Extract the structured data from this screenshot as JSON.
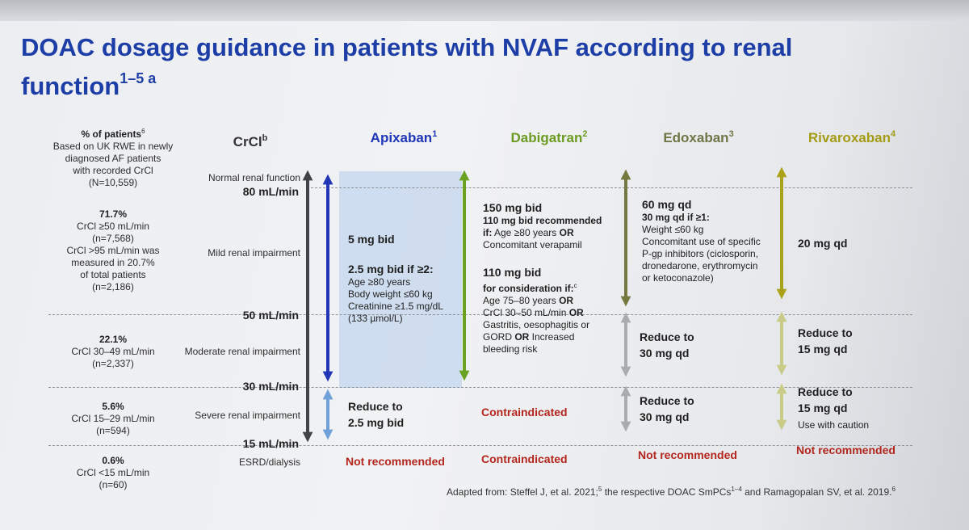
{
  "title": "DOAC dosage guidance in patients with NVAF according to renal function",
  "title_sup": "1–5 a",
  "pct_header": {
    "line1": "% of patients",
    "line1_sup": "6",
    "line2": "Based on UK RWE in newly",
    "line3": "diagnosed AF patients",
    "line4": "with recorded CrCl",
    "line5": "(N=10,559)"
  },
  "pct_rows": [
    {
      "pct": "71.7%",
      "l1": "CrCl ≥50 mL/min",
      "l2": "(n=7,568)",
      "l3": "CrCl >95 mL/min was",
      "l4": "measured in 20.7%",
      "l5": "of total patients",
      "l6": "(n=2,186)"
    },
    {
      "pct": "22.1%",
      "l1": "CrCl 30–49 mL/min",
      "l2": "(n=2,337)"
    },
    {
      "pct": "5.6%",
      "l1": "CrCl 15–29 mL/min",
      "l2": "(n=594)"
    },
    {
      "pct": "0.6%",
      "l1": "CrCl <15 mL/min",
      "l2": "(n=60)"
    }
  ],
  "crcl": {
    "header": "CrCl",
    "header_sup": "b",
    "labels": [
      "Normal renal function",
      "Mild renal impairment",
      "Moderate renal impairment",
      "Severe renal impairment",
      "ESRD/dialysis"
    ],
    "values": [
      "80 mL/min",
      "50 mL/min",
      "30 mL/min",
      "15 mL/min"
    ]
  },
  "drugs": [
    {
      "name": "Apixaban",
      "sup": "1",
      "color": "#1f36b8"
    },
    {
      "name": "Dabigatran",
      "sup": "2",
      "color": "#6d9b22"
    },
    {
      "name": "Edoxaban",
      "sup": "3",
      "color": "#6f7546"
    },
    {
      "name": "Rivaroxaban",
      "sup": "4",
      "color": "#a59c15"
    }
  ],
  "apixaban": {
    "dose1": "5 mg bid",
    "dose2": "2.5 mg bid if ≥2:",
    "c1": "Age ≥80 years",
    "c2": "Body weight ≤60 kg",
    "c3": "Creatinine ≥1.5 mg/dL",
    "c4": "(133 µmol/L)",
    "severe1": "Reduce to",
    "severe2": "2.5 mg bid",
    "esrd": "Not recommended"
  },
  "dabigatran": {
    "dose1": "150 mg bid",
    "rec1": "110 mg bid recommended",
    "rec2_prefix": "if:",
    "rec2": " Age ≥80 years ",
    "or": "OR",
    "rec3": "Concomitant verapamil",
    "dose2": "110 mg bid",
    "cons": "for consideration if:",
    "cons_sup": "c",
    "k1": "Age 75–80 years ",
    "k2": "CrCl 30–50 mL/min ",
    "k3": "Gastritis, oesophagitis or",
    "k4": "GORD ",
    "k4b": " Increased",
    "k5": "bleeding risk",
    "severe": "Contraindicated",
    "esrd": "Contraindicated"
  },
  "edoxaban": {
    "dose1": "60 mg qd",
    "dose2": "30 mg qd if ≥1:",
    "c1": "Weight ≤60 kg",
    "c2": "Concomitant use of specific",
    "c3": "P-gp inhibitors (ciclosporin,",
    "c4": "dronedarone, erythromycin",
    "c5": "or ketoconazole)",
    "mod1": "Reduce to",
    "mod2": "30 mg qd",
    "sev1": "Reduce to",
    "sev2": "30 mg qd",
    "esrd": "Not recommended"
  },
  "rivaroxaban": {
    "dose1": "20 mg qd",
    "mod1": "Reduce to",
    "mod2": "15 mg qd",
    "sev1": "Reduce to",
    "sev2": "15 mg qd",
    "sev3": "Use with caution",
    "esrd": "Not recommended"
  },
  "footer": {
    "text1": "Adapted from: Steffel J, et al. 2021;",
    "sup1": "5",
    "text2": " the respective DOAC SmPCs",
    "sup2": "1–4",
    "text3": " and Ramagopalan SV, et al. 2019.",
    "sup3": "6"
  },
  "colors": {
    "title": "#1d3ea6",
    "crcl_arrow": "#3f4248",
    "apixaban_arrow": "#2235b5",
    "apixaban_light": "#6fa1d8",
    "apixaban_box": "#c3d5ee",
    "dabigatran_arrow": "#6aa224",
    "edoxaban_arrow": "#75783f",
    "edoxaban_light": "#a9acae",
    "rivaroxaban_arrow": "#a9a21a",
    "rivaroxaban_light": "#c9cb86",
    "contraindicated": "#b3261e"
  }
}
